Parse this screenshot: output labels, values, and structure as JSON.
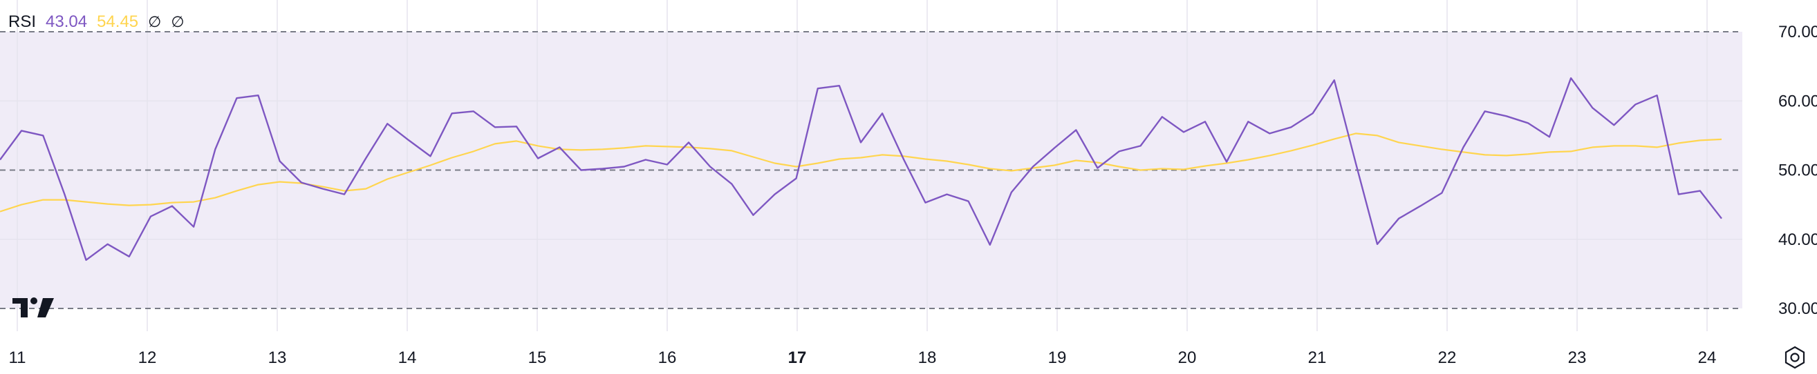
{
  "legend": {
    "name": "RSI",
    "rsi_value": "43.04",
    "ma_value": "54.45",
    "toggle1": "∅",
    "toggle2": "∅"
  },
  "colors": {
    "rsi_line": "#7e57c2",
    "ma_line": "#ffd54f",
    "band_fill": "#f0ecf7",
    "dashed": "#787b86",
    "grid": "#e6e3ee"
  },
  "chart_data": {
    "type": "line",
    "title": "",
    "ylim": [
      25,
      75
    ],
    "y_ticks": [
      "70.00",
      "60.00",
      "50.00",
      "40.00",
      "30.00"
    ],
    "x_ticks": [
      {
        "label": "11",
        "pos": 0,
        "bold": false
      },
      {
        "label": "12",
        "pos": 5,
        "bold": false
      },
      {
        "label": "13",
        "pos": 10,
        "bold": false
      },
      {
        "label": "14",
        "pos": 15,
        "bold": false
      },
      {
        "label": "15",
        "pos": 20,
        "bold": false
      },
      {
        "label": "16",
        "pos": 25,
        "bold": false
      },
      {
        "label": "17",
        "pos": 30,
        "bold": true
      },
      {
        "label": "18",
        "pos": 35,
        "bold": false
      },
      {
        "label": "19",
        "pos": 40,
        "bold": false
      },
      {
        "label": "20",
        "pos": 45,
        "bold": false
      },
      {
        "label": "21",
        "pos": 50,
        "bold": false
      },
      {
        "label": "22",
        "pos": 55,
        "bold": false
      },
      {
        "label": "23",
        "pos": 60,
        "bold": false
      },
      {
        "label": "24",
        "pos": 65,
        "bold": false
      }
    ],
    "band": [
      30,
      70
    ],
    "dashed_levels": [
      70,
      50,
      30
    ],
    "series": [
      {
        "values": [
          51.5,
          55.7,
          55.0,
          46.5,
          37.0,
          39.3,
          37.5,
          43.3,
          44.8,
          41.8,
          53.0,
          60.4,
          60.8,
          51.3,
          48.2,
          47.3,
          46.5,
          51.7,
          56.7,
          54.3,
          52.0,
          58.2,
          58.5,
          56.2,
          56.3,
          51.7,
          53.3,
          50.0,
          50.2,
          50.5,
          51.5,
          50.8,
          54.0,
          50.5,
          48.0,
          43.5,
          46.5,
          48.8,
          61.8,
          62.2,
          54.0,
          58.2,
          51.5,
          45.3,
          46.5,
          45.5,
          39.2,
          46.8,
          50.5,
          53.2,
          55.8,
          50.3,
          52.7,
          53.5,
          57.7,
          55.5,
          57.0,
          51.2,
          57.0,
          55.3,
          56.2,
          58.2,
          63.0,
          51.0,
          39.3,
          43.0,
          44.8,
          46.7,
          53.3,
          58.5,
          57.8,
          56.8,
          54.8,
          63.3,
          59.0,
          56.5,
          59.5,
          60.8,
          46.5,
          47.0,
          43.0
        ]
      },
      {
        "values": [
          44.0,
          45.0,
          45.7,
          45.7,
          45.4,
          45.1,
          44.9,
          45.0,
          45.3,
          45.4,
          46.0,
          47.0,
          47.9,
          48.3,
          48.1,
          47.6,
          47.0,
          47.3,
          48.7,
          49.7,
          50.7,
          51.8,
          52.7,
          53.8,
          54.2,
          53.5,
          53.0,
          52.9,
          53.0,
          53.2,
          53.5,
          53.4,
          53.3,
          53.1,
          52.8,
          51.9,
          51.0,
          50.5,
          51.0,
          51.6,
          51.8,
          52.2,
          52.0,
          51.6,
          51.3,
          50.8,
          50.2,
          49.9,
          50.3,
          50.7,
          51.4,
          51.1,
          50.5,
          50.0,
          50.2,
          50.1,
          50.6,
          51.0,
          51.5,
          52.1,
          52.8,
          53.6,
          54.5,
          55.3,
          55.0,
          54.0,
          53.5,
          53.0,
          52.6,
          52.2,
          52.1,
          52.3,
          52.6,
          52.7,
          53.3,
          53.5,
          53.5,
          53.3,
          53.9,
          54.3,
          54.45
        ]
      }
    ]
  }
}
